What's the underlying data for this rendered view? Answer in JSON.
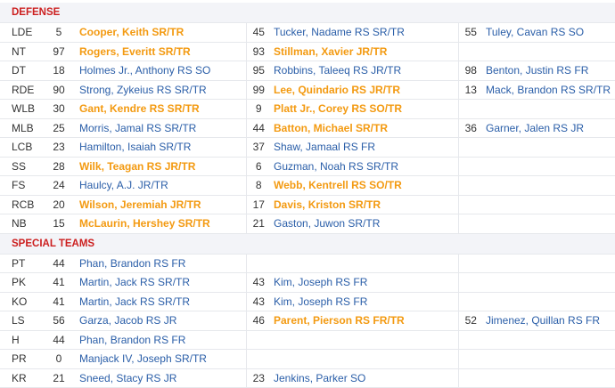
{
  "sections": [
    {
      "title": "DEFENSE",
      "rows": [
        {
          "pos": "LDE",
          "players": [
            {
              "num": "5",
              "name": "Cooper, Keith SR/TR",
              "starter": true
            },
            {
              "num": "45",
              "name": "Tucker, Nadame RS SR/TR",
              "starter": false
            },
            {
              "num": "55",
              "name": "Tuley, Cavan RS SO",
              "starter": false
            }
          ]
        },
        {
          "pos": "NT",
          "players": [
            {
              "num": "97",
              "name": "Rogers, Everitt SR/TR",
              "starter": true
            },
            {
              "num": "93",
              "name": "Stillman, Xavier JR/TR",
              "starter": true
            },
            {
              "num": "",
              "name": "",
              "starter": false
            }
          ]
        },
        {
          "pos": "DT",
          "players": [
            {
              "num": "18",
              "name": "Holmes Jr., Anthony RS SO",
              "starter": false
            },
            {
              "num": "95",
              "name": "Robbins, Taleeq RS JR/TR",
              "starter": false
            },
            {
              "num": "98",
              "name": "Benton, Justin RS FR",
              "starter": false
            }
          ]
        },
        {
          "pos": "RDE",
          "players": [
            {
              "num": "90",
              "name": "Strong, Zykeius RS SR/TR",
              "starter": false
            },
            {
              "num": "99",
              "name": "Lee, Quindario RS JR/TR",
              "starter": true
            },
            {
              "num": "13",
              "name": "Mack, Brandon RS SR/TR",
              "starter": false
            }
          ]
        },
        {
          "pos": "WLB",
          "players": [
            {
              "num": "30",
              "name": "Gant, Kendre RS SR/TR",
              "starter": true
            },
            {
              "num": "9",
              "name": "Platt Jr., Corey RS SO/TR",
              "starter": true
            },
            {
              "num": "",
              "name": "",
              "starter": false
            }
          ]
        },
        {
          "pos": "MLB",
          "players": [
            {
              "num": "25",
              "name": "Morris, Jamal RS SR/TR",
              "starter": false
            },
            {
              "num": "44",
              "name": "Batton, Michael SR/TR",
              "starter": true
            },
            {
              "num": "36",
              "name": "Garner, Jalen RS JR",
              "starter": false
            }
          ]
        },
        {
          "pos": "LCB",
          "players": [
            {
              "num": "23",
              "name": "Hamilton, Isaiah SR/TR",
              "starter": false
            },
            {
              "num": "37",
              "name": "Shaw, Jamaal RS FR",
              "starter": false
            },
            {
              "num": "",
              "name": "",
              "starter": false
            }
          ]
        },
        {
          "pos": "SS",
          "players": [
            {
              "num": "28",
              "name": "Wilk, Teagan RS JR/TR",
              "starter": true
            },
            {
              "num": "6",
              "name": "Guzman, Noah RS SR/TR",
              "starter": false
            },
            {
              "num": "",
              "name": "",
              "starter": false
            }
          ]
        },
        {
          "pos": "FS",
          "players": [
            {
              "num": "24",
              "name": "Haulcy, A.J. JR/TR",
              "starter": false
            },
            {
              "num": "8",
              "name": "Webb, Kentrell RS SO/TR",
              "starter": true
            },
            {
              "num": "",
              "name": "",
              "starter": false
            }
          ]
        },
        {
          "pos": "RCB",
          "players": [
            {
              "num": "20",
              "name": "Wilson, Jeremiah JR/TR",
              "starter": true
            },
            {
              "num": "17",
              "name": "Davis, Kriston SR/TR",
              "starter": true
            },
            {
              "num": "",
              "name": "",
              "starter": false
            }
          ]
        },
        {
          "pos": "NB",
          "players": [
            {
              "num": "15",
              "name": "McLaurin, Hershey SR/TR",
              "starter": true
            },
            {
              "num": "21",
              "name": "Gaston, Juwon SR/TR",
              "starter": false
            },
            {
              "num": "",
              "name": "",
              "starter": false
            }
          ]
        }
      ]
    },
    {
      "title": "SPECIAL TEAMS",
      "rows": [
        {
          "pos": "PT",
          "players": [
            {
              "num": "44",
              "name": "Phan, Brandon RS FR",
              "starter": false
            },
            {
              "num": "",
              "name": "",
              "starter": false
            },
            {
              "num": "",
              "name": "",
              "starter": false
            }
          ]
        },
        {
          "pos": "PK",
          "players": [
            {
              "num": "41",
              "name": "Martin, Jack RS SR/TR",
              "starter": false
            },
            {
              "num": "43",
              "name": "Kim, Joseph RS FR",
              "starter": false
            },
            {
              "num": "",
              "name": "",
              "starter": false
            }
          ]
        },
        {
          "pos": "KO",
          "players": [
            {
              "num": "41",
              "name": "Martin, Jack RS SR/TR",
              "starter": false
            },
            {
              "num": "43",
              "name": "Kim, Joseph RS FR",
              "starter": false
            },
            {
              "num": "",
              "name": "",
              "starter": false
            }
          ]
        },
        {
          "pos": "LS",
          "players": [
            {
              "num": "56",
              "name": "Garza, Jacob RS JR",
              "starter": false
            },
            {
              "num": "46",
              "name": "Parent, Pierson RS FR/TR",
              "starter": true
            },
            {
              "num": "52",
              "name": "Jimenez, Quillan RS FR",
              "starter": false
            }
          ]
        },
        {
          "pos": "H",
          "players": [
            {
              "num": "44",
              "name": "Phan, Brandon RS FR",
              "starter": false
            },
            {
              "num": "",
              "name": "",
              "starter": false
            },
            {
              "num": "",
              "name": "",
              "starter": false
            }
          ]
        },
        {
          "pos": "PR",
          "players": [
            {
              "num": "0",
              "name": "Manjack IV, Joseph SR/TR",
              "starter": false
            },
            {
              "num": "",
              "name": "",
              "starter": false
            },
            {
              "num": "",
              "name": "",
              "starter": false
            }
          ]
        },
        {
          "pos": "KR",
          "players": [
            {
              "num": "21",
              "name": "Sneed, Stacy RS JR",
              "starter": false
            },
            {
              "num": "23",
              "name": "Jenkins, Parker SO",
              "starter": false
            },
            {
              "num": "",
              "name": "",
              "starter": false
            }
          ]
        }
      ]
    }
  ],
  "colors": {
    "section_title": "#cc1f1f",
    "player_link": "#2a5ea8",
    "starter_highlight": "#f39a11",
    "section_bg": "#f3f4f8"
  }
}
